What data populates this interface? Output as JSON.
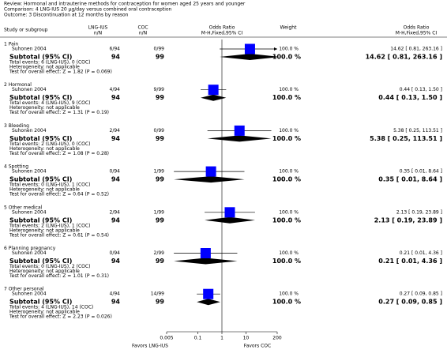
{
  "header": {
    "review": "Review:  Hormonal and intrauterine methods for contraception for women aged 25 years and younger",
    "comparison": "Comparison:  4 LNG-IUS 20 µg/day versus combined oral contraception",
    "outcome": "Outcome:  3 Discontinuation at 12 months by reason"
  },
  "chart_data": {
    "type": "forest",
    "columns": {
      "study": "Study or subgroup",
      "lng": "LNG-IUS",
      "lng_sub": "n/N",
      "coc": "COC",
      "coc_sub": "n/N",
      "plot": "Odds Ratio",
      "plot_sub": "M-H,Fixed,95% CI",
      "weight": "Weight",
      "or": "Odds Ratio",
      "or_sub": "M-H,Fixed,95% CI"
    },
    "xlim": [
      0.005,
      200
    ],
    "xticks": [
      0.005,
      0.1,
      1,
      10,
      200
    ],
    "log": true,
    "favors_left": "Favors LNG-IUS",
    "favors_right": "Favors COC",
    "square_color": "#0000ff",
    "subgroups": [
      {
        "title": "1 Pain",
        "study": {
          "name": "Suhonen 2004",
          "lng": "6/94",
          "coc": "0/99",
          "weight": "100.0 %",
          "or": 14.62,
          "lo": 0.81,
          "hi": 263.16,
          "label": "14.62 [ 0.81, 263.16 ]"
        },
        "subtotal": {
          "name": "Subtotal (95% CI)",
          "n_lng": 94,
          "n_coc": 99,
          "weight": "100.0 %",
          "or": 14.62,
          "lo": 0.81,
          "hi": 263.16,
          "label": "14.62 [ 0.81, 263.16 ]"
        },
        "events": "Total events: 6 (LNG-IUS), 0 (COC)",
        "heterogeneity": "Heterogeneity: not applicable",
        "test": "Test for overall effect: Z = 1.82 (P = 0.069)"
      },
      {
        "title": "2 Hormonal",
        "study": {
          "name": "Suhonen 2004",
          "lng": "4/94",
          "coc": "9/99",
          "weight": "100.0 %",
          "or": 0.44,
          "lo": 0.13,
          "hi": 1.5,
          "label": "0.44 [ 0.13, 1.50 ]"
        },
        "subtotal": {
          "name": "Subtotal (95% CI)",
          "n_lng": 94,
          "n_coc": 99,
          "weight": "100.0 %",
          "or": 0.44,
          "lo": 0.13,
          "hi": 1.5,
          "label": "0.44 [ 0.13, 1.50 ]"
        },
        "events": "Total events: 4 (LNG-IUS), 9 (COC)",
        "heterogeneity": "Heterogeneity: not applicable",
        "test": "Test for overall effect: Z = 1.31 (P = 0.19)"
      },
      {
        "title": "3 Bleeding",
        "study": {
          "name": "Suhonen 2004",
          "lng": "2/94",
          "coc": "0/99",
          "weight": "100.0 %",
          "or": 5.38,
          "lo": 0.25,
          "hi": 113.51,
          "label": "5.38 [ 0.25, 113.51 ]"
        },
        "subtotal": {
          "name": "Subtotal (95% CI)",
          "n_lng": 94,
          "n_coc": 99,
          "weight": "100.0 %",
          "or": 5.38,
          "lo": 0.25,
          "hi": 113.51,
          "label": "5.38 [ 0.25, 113.51 ]"
        },
        "events": "Total events: 2 (LNG-IUS), 0 (COC)",
        "heterogeneity": "Heterogeneity: not applicable",
        "test": "Test for overall effect: Z = 1.08 (P = 0.28)"
      },
      {
        "title": "4 Spotting",
        "study": {
          "name": "Suhonen 2004",
          "lng": "0/94",
          "coc": "1/99",
          "weight": "100.0 %",
          "or": 0.35,
          "lo": 0.01,
          "hi": 8.64,
          "label": "0.35 [ 0.01, 8.64 ]"
        },
        "subtotal": {
          "name": "Subtotal (95% CI)",
          "n_lng": 94,
          "n_coc": 99,
          "weight": "100.0 %",
          "or": 0.35,
          "lo": 0.01,
          "hi": 8.64,
          "label": "0.35 [ 0.01, 8.64 ]"
        },
        "events": "Total events: 0 (LNG-IUS), 1 (COC)",
        "heterogeneity": "Heterogeneity: not applicable",
        "test": "Test for overall effect: Z = 0.64 (P = 0.52)"
      },
      {
        "title": "5 Other medical",
        "study": {
          "name": "Suhonen 2004",
          "lng": "2/94",
          "coc": "1/99",
          "weight": "100.0 %",
          "or": 2.13,
          "lo": 0.19,
          "hi": 23.89,
          "label": "2.13 [ 0.19, 23.89 ]"
        },
        "subtotal": {
          "name": "Subtotal (95% CI)",
          "n_lng": 94,
          "n_coc": 99,
          "weight": "100.0 %",
          "or": 2.13,
          "lo": 0.19,
          "hi": 23.89,
          "label": "2.13 [ 0.19, 23.89 ]"
        },
        "events": "Total events: 2 (LNG-IUS), 1 (COC)",
        "heterogeneity": "Heterogeneity: not applicable",
        "test": "Test for overall effect: Z = 0.61 (P = 0.54)"
      },
      {
        "title": "6 Planning pregnancy",
        "study": {
          "name": "Suhonen 2004",
          "lng": "0/94",
          "coc": "2/99",
          "weight": "100.0 %",
          "or": 0.21,
          "lo": 0.01,
          "hi": 4.36,
          "label": "0.21 [ 0.01, 4.36 ]"
        },
        "subtotal": {
          "name": "Subtotal (95% CI)",
          "n_lng": 94,
          "n_coc": 99,
          "weight": "100.0 %",
          "or": 0.21,
          "lo": 0.01,
          "hi": 4.36,
          "label": "0.21 [ 0.01, 4.36 ]"
        },
        "events": "Total events: 0 (LNG-IUS), 2 (COC)",
        "heterogeneity": "Heterogeneity: not applicable",
        "test": "Test for overall effect: Z = 1.01 (P = 0.31)"
      },
      {
        "title": "7 Other personal",
        "study": {
          "name": "Suhonen 2004",
          "lng": "4/94",
          "coc": "14/99",
          "weight": "100.0 %",
          "or": 0.27,
          "lo": 0.09,
          "hi": 0.85,
          "label": "0.27 [ 0.09, 0.85 ]"
        },
        "subtotal": {
          "name": "Subtotal (95% CI)",
          "n_lng": 94,
          "n_coc": 99,
          "weight": "100.0 %",
          "or": 0.27,
          "lo": 0.09,
          "hi": 0.85,
          "label": "0.27 [ 0.09, 0.85 ]"
        },
        "events": "Total events: 4 (LNG-IUS), 14 (COC)",
        "heterogeneity": "Heterogeneity: not applicable",
        "test": "Test for overall effect: Z = 2.23 (P = 0.026)"
      }
    ]
  }
}
